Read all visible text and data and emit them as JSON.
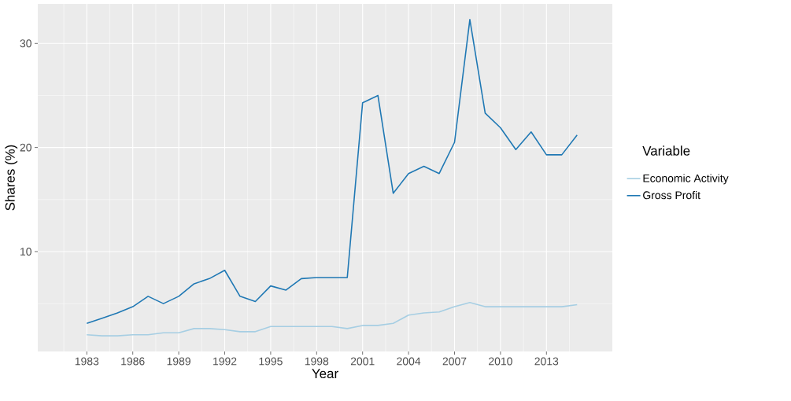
{
  "chart_data": {
    "type": "line",
    "xlabel": "Year",
    "ylabel": "Shares (%)",
    "legend_title": "Variable",
    "legend": "right",
    "grid": true,
    "x": [
      1983,
      1984,
      1985,
      1986,
      1987,
      1988,
      1989,
      1990,
      1991,
      1992,
      1993,
      1994,
      1995,
      1996,
      1997,
      1998,
      1999,
      2000,
      2001,
      2002,
      2003,
      2004,
      2005,
      2006,
      2007,
      2008,
      2009,
      2010,
      2011,
      2012,
      2013,
      2014,
      2015
    ],
    "series": [
      {
        "name": "Economic Activity",
        "color": "#a6cee3",
        "values": [
          2.0,
          1.9,
          1.9,
          2.0,
          2.0,
          2.2,
          2.2,
          2.6,
          2.6,
          2.5,
          2.3,
          2.3,
          2.8,
          2.8,
          2.8,
          2.8,
          2.8,
          2.6,
          2.9,
          2.9,
          3.1,
          3.9,
          4.1,
          4.2,
          4.7,
          5.1,
          4.7,
          4.7,
          4.7,
          4.7,
          4.7,
          4.7,
          4.9
        ]
      },
      {
        "name": "Gross Profit",
        "color": "#1f78b4",
        "values": [
          3.1,
          3.6,
          4.1,
          4.7,
          5.7,
          5.0,
          5.7,
          6.9,
          7.4,
          8.2,
          5.7,
          5.2,
          6.7,
          6.3,
          7.4,
          7.5,
          7.5,
          7.5,
          24.3,
          25.0,
          15.6,
          17.5,
          18.2,
          17.5,
          20.5,
          32.3,
          23.3,
          21.9,
          19.8,
          21.5,
          19.3,
          19.3,
          21.2
        ]
      }
    ],
    "xlim": [
      1979.8,
      2017.3
    ],
    "ylim": [
      0.4,
      33.8
    ],
    "xticks": [
      1983,
      1986,
      1989,
      1992,
      1995,
      1998,
      2001,
      2004,
      2007,
      2010,
      2013
    ],
    "yticks": [
      10,
      20,
      30
    ]
  }
}
